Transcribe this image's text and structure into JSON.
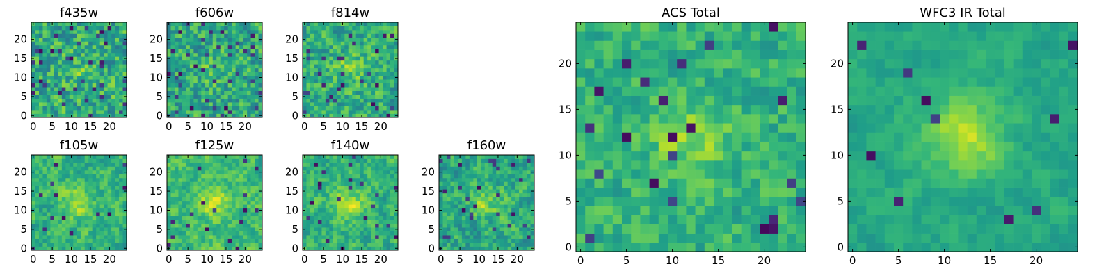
{
  "chart_data": [
    {
      "type": "heatmap",
      "title": "f435w",
      "grid": false,
      "xlim": [
        0,
        24
      ],
      "ylim": [
        0,
        24
      ],
      "xticks": [
        "0",
        "5",
        "10",
        "15",
        "20"
      ],
      "yticks": [
        "0",
        "5",
        "10",
        "15",
        "20"
      ],
      "pattern": {
        "seed": 11,
        "level": 0.62,
        "spread": 0.16,
        "smoothing": 0.15,
        "blob": 0.08,
        "dark_fraction": 0.07
      }
    },
    {
      "type": "heatmap",
      "title": "f606w",
      "grid": false,
      "xlim": [
        0,
        24
      ],
      "ylim": [
        0,
        24
      ],
      "xticks": [
        "0",
        "5",
        "10",
        "15",
        "20"
      ],
      "yticks": [
        "0",
        "5",
        "10",
        "15",
        "20"
      ],
      "pattern": {
        "seed": 23,
        "level": 0.6,
        "spread": 0.16,
        "smoothing": 0.2,
        "blob": 0.1,
        "dark_fraction": 0.06
      }
    },
    {
      "type": "heatmap",
      "title": "f814w",
      "grid": false,
      "xlim": [
        0,
        24
      ],
      "ylim": [
        0,
        24
      ],
      "xticks": [
        "0",
        "5",
        "10",
        "15",
        "20"
      ],
      "yticks": [
        "0",
        "5",
        "10",
        "15",
        "20"
      ],
      "pattern": {
        "seed": 37,
        "level": 0.62,
        "spread": 0.15,
        "smoothing": 0.25,
        "blob": 0.15,
        "dark_fraction": 0.04
      }
    },
    {
      "type": "heatmap",
      "title": "f105w",
      "grid": false,
      "xlim": [
        0,
        24
      ],
      "ylim": [
        0,
        24
      ],
      "xticks": [
        "0",
        "5",
        "10",
        "15",
        "20"
      ],
      "yticks": [
        "0",
        "5",
        "10",
        "15",
        "20"
      ],
      "pattern": {
        "seed": 41,
        "level": 0.64,
        "spread": 0.15,
        "smoothing": 0.5,
        "blob": 0.22,
        "dark_fraction": 0.03
      }
    },
    {
      "type": "heatmap",
      "title": "f125w",
      "grid": false,
      "xlim": [
        0,
        24
      ],
      "ylim": [
        0,
        24
      ],
      "xticks": [
        "0",
        "5",
        "10",
        "15",
        "20"
      ],
      "yticks": [
        "0",
        "5",
        "10",
        "15",
        "20"
      ],
      "pattern": {
        "seed": 53,
        "level": 0.68,
        "spread": 0.14,
        "smoothing": 0.5,
        "blob": 0.2,
        "dark_fraction": 0.02
      }
    },
    {
      "type": "heatmap",
      "title": "f140w",
      "grid": false,
      "xlim": [
        0,
        24
      ],
      "ylim": [
        0,
        24
      ],
      "xticks": [
        "0",
        "5",
        "10",
        "15",
        "20"
      ],
      "yticks": [
        "0",
        "5",
        "10",
        "15",
        "20"
      ],
      "pattern": {
        "seed": 67,
        "level": 0.64,
        "spread": 0.15,
        "smoothing": 0.5,
        "blob": 0.22,
        "dark_fraction": 0.03
      }
    },
    {
      "type": "heatmap",
      "title": "f160w",
      "grid": false,
      "xlim": [
        0,
        24
      ],
      "ylim": [
        0,
        24
      ],
      "xticks": [
        "0",
        "5",
        "10",
        "15",
        "20"
      ],
      "yticks": [
        "0",
        "5",
        "10",
        "15",
        "20"
      ],
      "pattern": {
        "seed": 79,
        "level": 0.6,
        "spread": 0.16,
        "smoothing": 0.45,
        "blob": 0.22,
        "dark_fraction": 0.04
      }
    },
    {
      "type": "heatmap",
      "title": "ACS Total",
      "grid": false,
      "xlim": [
        0,
        24
      ],
      "ylim": [
        0,
        24
      ],
      "xticks": [
        "0",
        "5",
        "10",
        "15",
        "20"
      ],
      "yticks": [
        "0",
        "5",
        "10",
        "15",
        "20"
      ],
      "pattern": {
        "seed": 97,
        "level": 0.64,
        "spread": 0.12,
        "smoothing": 0.35,
        "blob": 0.18,
        "dark_fraction": 0.04
      }
    },
    {
      "type": "heatmap",
      "title": "WFC3 IR Total",
      "grid": false,
      "xlim": [
        0,
        24
      ],
      "ylim": [
        0,
        24
      ],
      "xticks": [
        "0",
        "5",
        "10",
        "15",
        "20"
      ],
      "yticks": [
        "0",
        "5",
        "10",
        "15",
        "20"
      ],
      "pattern": {
        "seed": 131,
        "level": 0.6,
        "spread": 0.09,
        "smoothing": 0.6,
        "blob": 0.3,
        "dark_fraction": 0.015
      }
    }
  ]
}
